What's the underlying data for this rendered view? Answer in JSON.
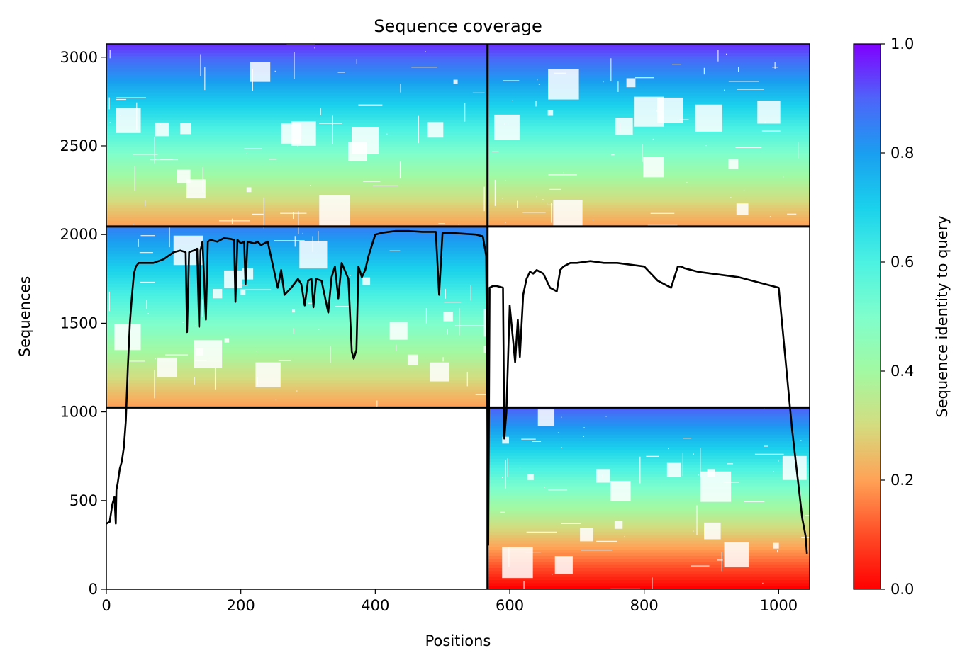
{
  "chart_data": {
    "type": "heatmap",
    "title": "Sequence coverage",
    "xlabel": "Positions",
    "ylabel": "Sequences",
    "colorbar_label": "Sequence identity to query",
    "colormap": "rainbow_r",
    "xlim": [
      0,
      1046
    ],
    "ylim": [
      0,
      3075
    ],
    "xticks": [
      0,
      200,
      400,
      600,
      800,
      1000
    ],
    "yticks": [
      0,
      500,
      1000,
      1500,
      2000,
      2500,
      3000
    ],
    "colorbar_ticks": [
      "0.0",
      "0.2",
      "0.4",
      "0.6",
      "0.8",
      "1.0"
    ],
    "block_boundaries": {
      "x": [
        567
      ],
      "y": [
        1025,
        2045
      ]
    },
    "blocks": [
      {
        "x_range": [
          0,
          567
        ],
        "y_range": [
          1025,
          2045
        ],
        "identity_range": [
          0.2,
          0.85
        ]
      },
      {
        "x_range": [
          0,
          567
        ],
        "y_range": [
          2045,
          3075
        ],
        "identity_range": [
          0.2,
          0.95
        ]
      },
      {
        "x_range": [
          567,
          1046
        ],
        "y_range": [
          2045,
          3075
        ],
        "identity_range": [
          0.2,
          0.95
        ]
      },
      {
        "x_range": [
          567,
          1046
        ],
        "y_range": [
          0,
          1025
        ],
        "identity_range": [
          0.0,
          0.9
        ]
      }
    ],
    "coverage_line": {
      "x": [
        0,
        5,
        9,
        12,
        14,
        15,
        17,
        20,
        23,
        26,
        29,
        32,
        35,
        38,
        41,
        44,
        48,
        55,
        70,
        85,
        100,
        110,
        118,
        120,
        123,
        130,
        135,
        138,
        140,
        143,
        148,
        151,
        155,
        165,
        175,
        185,
        190,
        192,
        195,
        200,
        205,
        207,
        210,
        220,
        225,
        230,
        240,
        255,
        260,
        265,
        275,
        285,
        290,
        295,
        300,
        305,
        308,
        312,
        320,
        330,
        335,
        340,
        345,
        350,
        360,
        365,
        368,
        372,
        375,
        380,
        385,
        390,
        400,
        410,
        430,
        450,
        470,
        490,
        495,
        500,
        503,
        510,
        530,
        550,
        560,
        565,
        567,
        568,
        570,
        575,
        580,
        590,
        592,
        595,
        600,
        605,
        608,
        612,
        615,
        620,
        625,
        630,
        635,
        640,
        650,
        660,
        670,
        675,
        680,
        685,
        690,
        700,
        720,
        740,
        760,
        780,
        800,
        820,
        840,
        850,
        855,
        860,
        870,
        880,
        900,
        920,
        940,
        960,
        980,
        1000,
        1020,
        1035,
        1040,
        1042,
        1044,
        1046
      ],
      "y": [
        370,
        380,
        480,
        520,
        370,
        560,
        600,
        680,
        720,
        800,
        950,
        1250,
        1500,
        1650,
        1780,
        1820,
        1840,
        1840,
        1840,
        1860,
        1900,
        1910,
        1900,
        1450,
        1900,
        1910,
        1920,
        1480,
        1910,
        1960,
        1520,
        1960,
        1970,
        1960,
        1980,
        1975,
        1970,
        1620,
        1970,
        1950,
        1960,
        1720,
        1960,
        1950,
        1960,
        1940,
        1960,
        1700,
        1800,
        1660,
        1700,
        1750,
        1720,
        1600,
        1740,
        1750,
        1590,
        1750,
        1740,
        1560,
        1760,
        1820,
        1640,
        1840,
        1750,
        1340,
        1300,
        1350,
        1820,
        1760,
        1800,
        1880,
        2000,
        2010,
        2020,
        2020,
        2015,
        2015,
        1660,
        2010,
        2010,
        2010,
        2005,
        2000,
        1990,
        1880,
        900,
        250,
        1700,
        1710,
        1710,
        1700,
        850,
        1000,
        1600,
        1400,
        1280,
        1520,
        1310,
        1660,
        1750,
        1790,
        1780,
        1800,
        1780,
        1700,
        1680,
        1800,
        1820,
        1830,
        1840,
        1840,
        1850,
        1840,
        1840,
        1830,
        1820,
        1740,
        1700,
        1820,
        1820,
        1810,
        1800,
        1790,
        1780,
        1770,
        1760,
        1740,
        1720,
        1700,
        900,
        400,
        300,
        200
      ]
    }
  }
}
